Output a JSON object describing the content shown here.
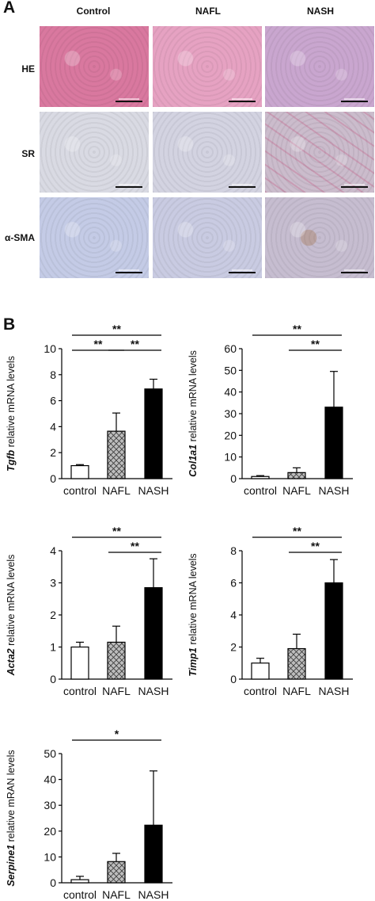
{
  "panel_a": {
    "letter": "A",
    "columns": [
      "Control",
      "NAFL",
      "NASH"
    ],
    "rows": [
      "HE",
      "SR",
      "α-SMA"
    ],
    "tile_colors": {
      "HE": [
        "#d9789f",
        "#e6a2c2",
        "#c9a6cf"
      ],
      "SR": [
        "#d9dae3",
        "#d3d3e1",
        "#cbbccc"
      ],
      "α-SMA": [
        "#c4cbe6",
        "#c9cbe2",
        "#c6bdd0"
      ]
    }
  },
  "panel_b": {
    "letter": "B"
  },
  "chart_data": [
    {
      "type": "bar",
      "ylabel_gene": "Tgfb",
      "ylabel_rest": " relative mRNA levels",
      "categories": [
        "control",
        "NAFL",
        "NASH"
      ],
      "values": [
        1.0,
        3.65,
        6.9
      ],
      "errors": [
        0.08,
        1.4,
        0.75
      ],
      "ylim": [
        0,
        10
      ],
      "yticks": [
        "0",
        "2",
        "4",
        "6",
        "8",
        "10"
      ],
      "significance": [
        {
          "from": 0,
          "to": 2,
          "label": "**"
        },
        {
          "from": 0,
          "to": 1,
          "label": "**"
        },
        {
          "from": 1,
          "to": 2,
          "label": "**"
        }
      ]
    },
    {
      "type": "bar",
      "ylabel_gene": "Col1a1",
      "ylabel_rest": " relative mRNA levels",
      "categories": [
        "control",
        "NAFL",
        "NASH"
      ],
      "values": [
        1.0,
        2.8,
        33.0
      ],
      "errors": [
        0.4,
        2.2,
        16.5
      ],
      "ylim": [
        0,
        60
      ],
      "yticks": [
        "0",
        "10",
        "20",
        "30",
        "40",
        "50",
        "60"
      ],
      "significance": [
        {
          "from": 0,
          "to": 2,
          "label": "**"
        },
        {
          "from": 1,
          "to": 2,
          "label": "**"
        }
      ]
    },
    {
      "type": "bar",
      "ylabel_gene": "Acta2",
      "ylabel_rest": " relative mRNA levels",
      "categories": [
        "control",
        "NAFL",
        "NASH"
      ],
      "values": [
        1.0,
        1.15,
        2.85
      ],
      "errors": [
        0.15,
        0.5,
        0.9
      ],
      "ylim": [
        0,
        4
      ],
      "yticks": [
        "0",
        "1",
        "2",
        "3",
        "4"
      ],
      "significance": [
        {
          "from": 0,
          "to": 2,
          "label": "**"
        },
        {
          "from": 1,
          "to": 2,
          "label": "**"
        }
      ]
    },
    {
      "type": "bar",
      "ylabel_gene": "Timp1",
      "ylabel_rest": " relative mRNA levels",
      "categories": [
        "control",
        "NAFL",
        "NASH"
      ],
      "values": [
        1.0,
        1.9,
        6.0
      ],
      "errors": [
        0.3,
        0.9,
        1.45
      ],
      "ylim": [
        0,
        8
      ],
      "yticks": [
        "0",
        "2",
        "4",
        "6",
        "8"
      ],
      "significance": [
        {
          "from": 0,
          "to": 2,
          "label": "**"
        },
        {
          "from": 1,
          "to": 2,
          "label": "**"
        }
      ]
    },
    {
      "type": "bar",
      "ylabel_gene": "Serpine1",
      "ylabel_rest": " relative mRAN levels",
      "categories": [
        "control",
        "NAFL",
        "NASH"
      ],
      "values": [
        1.2,
        8.2,
        22.3
      ],
      "errors": [
        1.3,
        3.2,
        21.0
      ],
      "ylim": [
        0,
        50
      ],
      "yticks": [
        "0",
        "10",
        "20",
        "30",
        "40",
        "50"
      ],
      "significance": [
        {
          "from": 0,
          "to": 2,
          "label": "*"
        }
      ]
    }
  ]
}
